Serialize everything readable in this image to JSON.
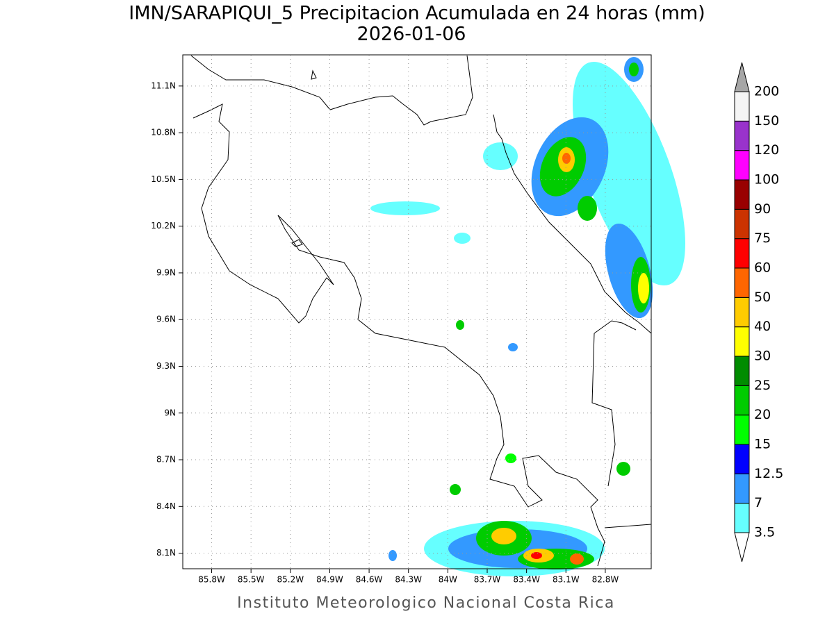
{
  "title": "IMN/SARAPIQUI_5 Precipitacion Acumulada en 24 horas (mm)",
  "subtitle": "2026-01-06",
  "map": {
    "xlim": [
      -86.02,
      -82.45
    ],
    "ylim": [
      8.0,
      11.3
    ],
    "xticks": [
      {
        "value": -85.8,
        "label": "85.8W"
      },
      {
        "value": -85.5,
        "label": "85.5W"
      },
      {
        "value": -85.2,
        "label": "85.2W"
      },
      {
        "value": -84.9,
        "label": "84.9W"
      },
      {
        "value": -84.6,
        "label": "84.6W"
      },
      {
        "value": -84.3,
        "label": "84.3W"
      },
      {
        "value": -84.0,
        "label": "84W"
      },
      {
        "value": -83.7,
        "label": "83.7W"
      },
      {
        "value": -83.4,
        "label": "83.4W"
      },
      {
        "value": -83.1,
        "label": "83.1W"
      },
      {
        "value": -82.8,
        "label": "82.8W"
      }
    ],
    "yticks": [
      {
        "value": 11.1,
        "label": "11.1N"
      },
      {
        "value": 10.8,
        "label": "10.8N"
      },
      {
        "value": 10.5,
        "label": "10.5N"
      },
      {
        "value": 10.2,
        "label": "10.2N"
      },
      {
        "value": 9.9,
        "label": "9.9N"
      },
      {
        "value": 9.6,
        "label": "9.6N"
      },
      {
        "value": 9.3,
        "label": "9.3N"
      },
      {
        "value": 9.0,
        "label": "9N"
      },
      {
        "value": 8.7,
        "label": "8.7N"
      },
      {
        "value": 8.4,
        "label": "8.4N"
      },
      {
        "value": 8.1,
        "label": "8.1N"
      }
    ],
    "grid": true
  },
  "colorbar": {
    "levels": [
      3.5,
      7,
      12.5,
      15,
      20,
      25,
      30,
      40,
      50,
      60,
      75,
      90,
      100,
      120,
      150,
      200
    ],
    "colors": [
      "#66ffff",
      "#3399ff",
      "#0000ff",
      "#00ff00",
      "#00cc00",
      "#008c00",
      "#ffff00",
      "#ffcc00",
      "#ff6600",
      "#ff0000",
      "#cc3300",
      "#990000",
      "#ff00ff",
      "#9933cc",
      "#f5f5f5"
    ],
    "below_color": "#ffffff",
    "above_color": "#a6a6a6"
  },
  "footer": "Instituto Meteorologico Nacional Costa Rica"
}
